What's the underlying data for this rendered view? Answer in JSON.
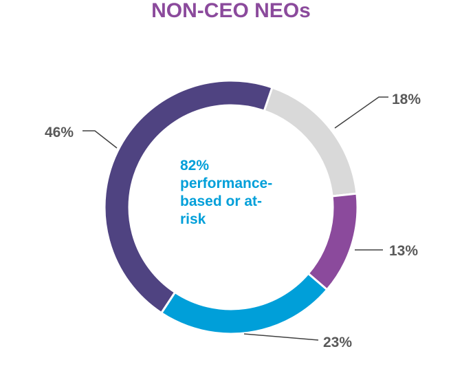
{
  "chart_data": {
    "type": "pie",
    "title": "NON-CEO NEOs",
    "center_label_lines": [
      "82%",
      "performance-",
      "based or at-",
      "risk"
    ],
    "slices": [
      {
        "value": 18,
        "label": "18%",
        "color": "#d9d9d9"
      },
      {
        "value": 13,
        "label": "13%",
        "color": "#8b4a9c"
      },
      {
        "value": 23,
        "label": "23%",
        "color": "#009fd9"
      },
      {
        "value": 46,
        "label": "46%",
        "color": "#4f4381"
      }
    ]
  },
  "colors": {
    "title": "#8b4a9c",
    "center_text": "#009fd9",
    "label_text": "#595959",
    "leader_line": "#404040"
  }
}
